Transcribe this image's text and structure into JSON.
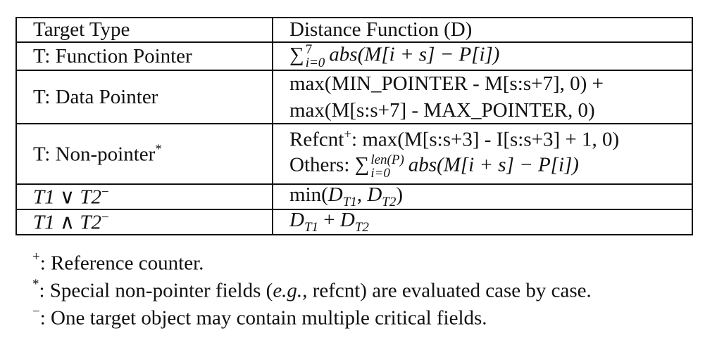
{
  "table": {
    "header": {
      "col1": "Target Type",
      "col2": "Distance Function (D)"
    },
    "rows": [
      {
        "type": "T: Function Pointer",
        "func": {
          "sum_upper": "7",
          "sum_lower": "i=0",
          "expr": "abs(M[i + s] − P[i])"
        }
      },
      {
        "type": "T: Data Pointer",
        "func_lines": [
          "max(MIN_POINTER - M[s:s+7], 0) +",
          "max(M[s:s+7] - MAX_POINTER, 0)"
        ]
      },
      {
        "type": "T: Non-pointer",
        "type_mark": "*",
        "func_line1_label": "Refcnt",
        "func_line1_mark": "+",
        "func_line1_rest": ": max(M[s:s+3] - I[s:s+3] + 1, 0)",
        "func_line2_label": "Others: ",
        "func_line2_upper": "len(P)",
        "func_line2_lower": "i=0",
        "func_line2_expr": "abs(M[i + s] − P[i])"
      },
      {
        "type": "T1 ∨ T2",
        "type_mark": "−",
        "func_prefix": "min(",
        "func_d1": "D",
        "func_d1_sub": "T1",
        "func_sep": ", ",
        "func_d2": "D",
        "func_d2_sub": "T2",
        "func_suffix": ")"
      },
      {
        "type": "T1 ∧ T2",
        "type_mark": "−",
        "func_d1": "D",
        "func_d1_sub": "T1",
        "func_sep": " + ",
        "func_d2": "D",
        "func_d2_sub": "T2"
      }
    ]
  },
  "notes": [
    {
      "mark": "+",
      "text": ": Reference counter."
    },
    {
      "mark": "*",
      "text_pre": ": Special non-pointer fields (",
      "text_em": "e.g.,",
      "text_post": " refcnt) are evaluated case by case."
    },
    {
      "mark": "−",
      "text": ": One target object may contain multiple critical fields."
    }
  ]
}
